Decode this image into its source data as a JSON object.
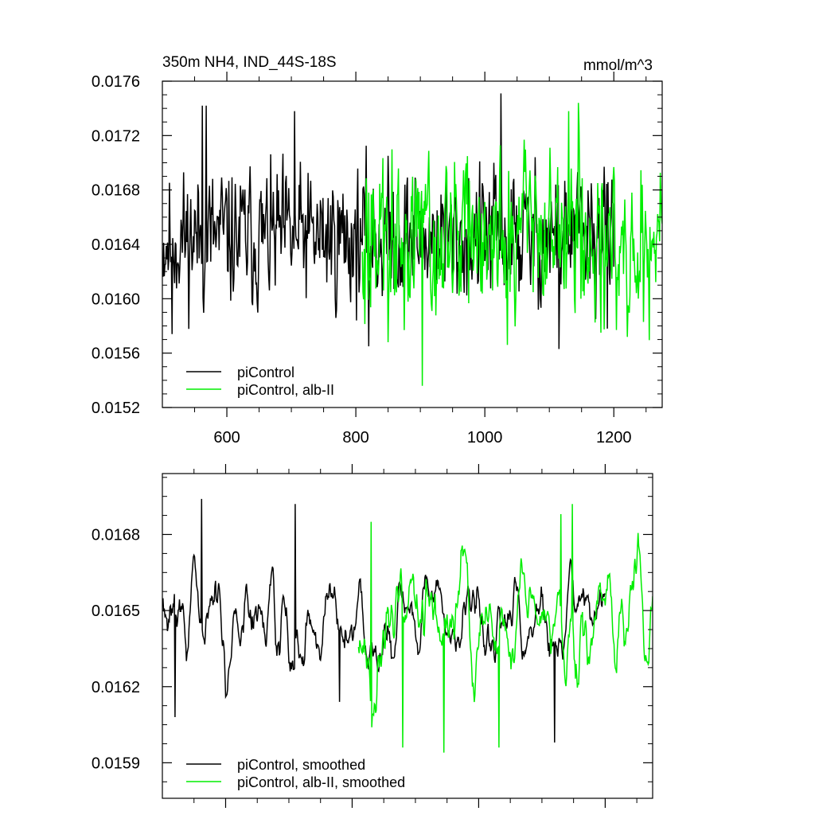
{
  "chart_data": [
    {
      "type": "line",
      "title": "350m NH4, IND_44S-18S",
      "units": "mmol/m^3",
      "xlim": [
        500,
        1275
      ],
      "ylim": [
        0.0152,
        0.0176
      ],
      "xticks": [
        600,
        800,
        1000,
        1200
      ],
      "xtick_labels": [
        "600",
        "800",
        "1000",
        "1200"
      ],
      "yticks": [
        0.0152,
        0.0156,
        0.016,
        0.0164,
        0.0168,
        0.0172,
        0.0176
      ],
      "ytick_labels": [
        "0.0152",
        "0.0156",
        "0.0160",
        "0.0164",
        "0.0168",
        "0.0172",
        "0.0176"
      ],
      "legend_position": "bottom-left",
      "series": [
        {
          "name": "piControl",
          "color": "#000000",
          "x_range": [
            501,
            1200
          ],
          "mean": 0.01645,
          "amplitude": 0.00045,
          "extremes": [
            [
              562,
              0.01742
            ],
            [
              568,
              0.01742
            ],
            [
              705,
              0.01738
            ],
            [
              1025,
              0.01751
            ],
            [
              820,
              0.01565
            ],
            [
              1115,
              0.01563
            ],
            [
              515,
              0.01574
            ],
            [
              1190,
              0.01578
            ]
          ]
        },
        {
          "name": "piControl, alb-II",
          "color": "#00ee00",
          "x_range": [
            810,
            1275
          ],
          "mean": 0.01645,
          "amplitude": 0.00055,
          "extremes": [
            [
              903,
              0.01536
            ],
            [
              1145,
              0.01744
            ],
            [
              1130,
              0.01738
            ],
            [
              1180,
              0.01575
            ],
            [
              850,
              0.01568
            ],
            [
              1035,
              0.01566
            ]
          ]
        }
      ]
    },
    {
      "type": "line",
      "xlim": [
        500,
        1275
      ],
      "ylim": [
        0.01576,
        0.01704
      ],
      "xticks": [
        600,
        800,
        1000,
        1200
      ],
      "yticks": [
        0.0159,
        0.0162,
        0.0165,
        0.0168
      ],
      "ytick_labels": [
        "0.0159",
        "0.0162",
        "0.0165",
        "0.0168"
      ],
      "legend_position": "bottom-left",
      "series": [
        {
          "name": "piControl, smoothed",
          "color": "#000000",
          "x_range": [
            501,
            1200
          ],
          "mean": 0.01646,
          "amplitude": 0.0002,
          "extremes": [
            [
              562,
              0.01694
            ],
            [
              710,
              0.01692
            ],
            [
              520,
              0.01608
            ],
            [
              780,
              0.01614
            ],
            [
              1120,
              0.01598
            ]
          ]
        },
        {
          "name": "piControl, alb-II, smoothed",
          "color": "#00ee00",
          "x_range": [
            810,
            1275
          ],
          "mean": 0.01646,
          "amplitude": 0.00028,
          "extremes": [
            [
              1148,
              0.01692
            ],
            [
              1130,
              0.01688
            ],
            [
              830,
              0.01685
            ],
            [
              1032,
              0.01596
            ],
            [
              880,
              0.01596
            ],
            [
              945,
              0.01594
            ]
          ]
        }
      ]
    }
  ]
}
